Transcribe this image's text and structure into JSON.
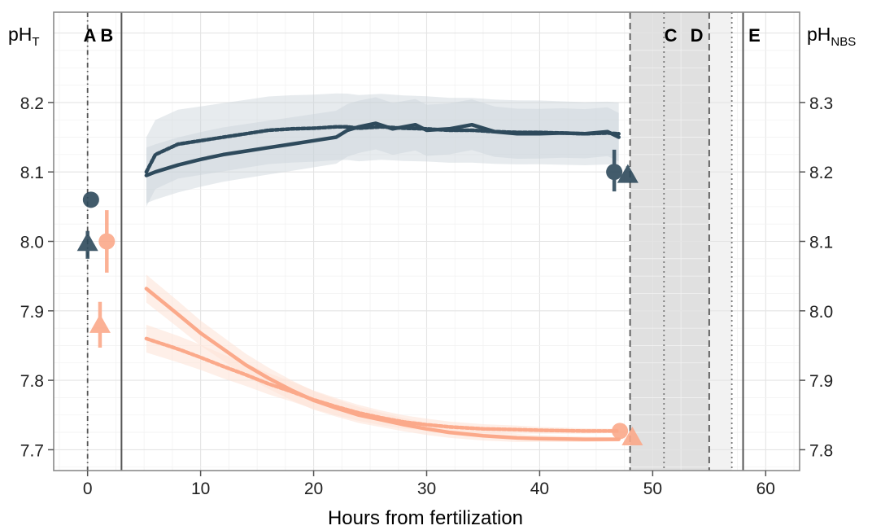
{
  "chart_data": {
    "type": "line",
    "title": "",
    "xlabel": "Hours from fertilization",
    "ylabel_left": {
      "main": "pH",
      "sub": "T"
    },
    "ylabel_right": {
      "main": "pH",
      "sub": "NBS"
    },
    "xlim": [
      -3,
      63
    ],
    "ylim_left": [
      7.67,
      8.33
    ],
    "xticks": [
      0,
      10,
      20,
      30,
      40,
      50,
      60
    ],
    "yticks_left": [
      7.7,
      7.8,
      7.9,
      8.0,
      8.1,
      8.2
    ],
    "yticks_right": [
      "7.8",
      "7.9",
      "8.0",
      "8.1",
      "8.2",
      "8.3"
    ],
    "grid": true,
    "colors": {
      "dark": "#2e4a5c",
      "light": "#fba98a"
    },
    "phases": [
      {
        "label": "A",
        "x": 0.2
      },
      {
        "label": "B",
        "x": 1.7
      },
      {
        "label": "C",
        "x": 51.6
      },
      {
        "label": "D",
        "x": 53.9
      },
      {
        "label": "E",
        "x": 59.0
      }
    ],
    "vlines": [
      {
        "x": 0,
        "style": "dashdot"
      },
      {
        "x": 3,
        "style": "solid"
      },
      {
        "x": 48,
        "style": "dashed"
      },
      {
        "x": 51,
        "style": "dotted"
      },
      {
        "x": 55,
        "style": "dashed"
      },
      {
        "x": 57,
        "style": "dotted"
      },
      {
        "x": 58,
        "style": "solid"
      }
    ],
    "shaded_regions": [
      {
        "x0": 48,
        "x1": 55,
        "color": "#e0e0e0"
      },
      {
        "x0": 55,
        "x1": 57,
        "color": "#f2f2f2"
      }
    ],
    "series": [
      {
        "color": "dark",
        "style": "dotted",
        "x": [
          5.2,
          6,
          8,
          10,
          12,
          14,
          16,
          18,
          20,
          22,
          23,
          24,
          26,
          28,
          30,
          32,
          34,
          36,
          38,
          40,
          42,
          44,
          46,
          47
        ],
        "y": [
          8.1,
          8.125,
          8.14,
          8.145,
          8.15,
          8.155,
          8.16,
          8.162,
          8.163,
          8.165,
          8.165,
          8.163,
          8.165,
          8.163,
          8.162,
          8.16,
          8.16,
          8.158,
          8.157,
          8.157,
          8.156,
          8.155,
          8.156,
          8.155
        ],
        "band": [
          0.05,
          0.045
        ]
      },
      {
        "color": "dark",
        "style": "solid",
        "x": [
          5.2,
          6,
          8,
          10,
          12,
          14,
          16,
          18,
          20,
          22,
          23,
          24,
          25.5,
          27,
          29,
          30,
          32,
          34,
          36,
          38,
          40,
          42,
          44,
          46,
          47
        ],
        "y": [
          8.095,
          8.1,
          8.11,
          8.118,
          8.125,
          8.13,
          8.135,
          8.14,
          8.145,
          8.15,
          8.16,
          8.165,
          8.17,
          8.162,
          8.168,
          8.16,
          8.162,
          8.168,
          8.158,
          8.155,
          8.155,
          8.156,
          8.155,
          8.158,
          8.15
        ],
        "band": [
          0.04,
          0.035
        ]
      },
      {
        "color": "light",
        "style": "solid",
        "x": [
          5.2,
          8,
          10,
          12,
          14,
          16,
          18,
          20,
          22,
          24,
          26,
          28,
          30,
          32,
          35,
          38,
          40,
          44,
          47
        ],
        "y": [
          7.932,
          7.895,
          7.868,
          7.845,
          7.822,
          7.803,
          7.786,
          7.771,
          7.76,
          7.75,
          7.743,
          7.736,
          7.73,
          7.725,
          7.72,
          7.717,
          7.716,
          7.715,
          7.715
        ],
        "band": [
          0.02,
          0.003
        ]
      },
      {
        "color": "light",
        "style": "dotted",
        "x": [
          5.2,
          8,
          10,
          12,
          14,
          16,
          18,
          20,
          22,
          24,
          26,
          28,
          30,
          32,
          35,
          38,
          40,
          44,
          47
        ],
        "y": [
          7.86,
          7.845,
          7.833,
          7.82,
          7.808,
          7.795,
          7.784,
          7.772,
          7.762,
          7.753,
          7.746,
          7.74,
          7.736,
          7.733,
          7.73,
          7.729,
          7.728,
          7.727,
          7.727
        ],
        "band": [
          0.02,
          0.003
        ]
      }
    ],
    "points": [
      {
        "x": 0.3,
        "y": 8.06,
        "lo": 8.05,
        "hi": 8.07,
        "shape": "circle",
        "color": "dark"
      },
      {
        "x": 0,
        "y": 7.998,
        "lo": 7.975,
        "hi": 8.015,
        "shape": "triangle",
        "color": "dark"
      },
      {
        "x": 1.7,
        "y": 8.0,
        "lo": 7.955,
        "hi": 8.045,
        "shape": "circle",
        "color": "light"
      },
      {
        "x": 1.1,
        "y": 7.88,
        "lo": 7.847,
        "hi": 7.913,
        "shape": "triangle",
        "color": "light"
      },
      {
        "x": 46.6,
        "y": 8.1,
        "lo": 8.072,
        "hi": 8.132,
        "shape": "circle",
        "color": "dark"
      },
      {
        "x": 47.8,
        "y": 8.096,
        "lo": 8.085,
        "hi": 8.108,
        "shape": "triangle",
        "color": "dark"
      },
      {
        "x": 47.1,
        "y": 7.727,
        "lo": 7.72,
        "hi": 7.734,
        "shape": "circle",
        "color": "light"
      },
      {
        "x": 48.2,
        "y": 7.718,
        "lo": 7.712,
        "hi": 7.724,
        "shape": "triangle",
        "color": "light"
      }
    ]
  }
}
